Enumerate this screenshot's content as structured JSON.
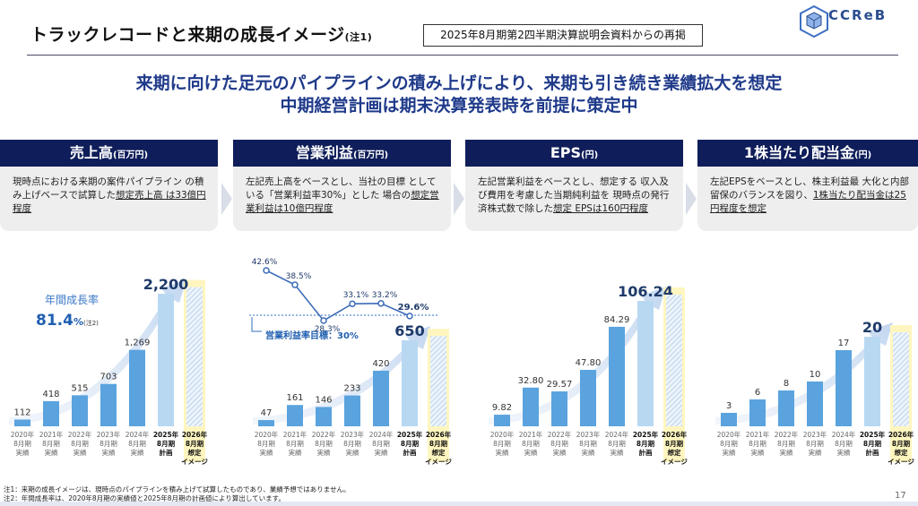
{
  "page": {
    "title": "トラックレコードと来期の成長イメージ",
    "title_note": "(注1)",
    "reprint": "2025年8月期第2四半期決算説明会資料からの再掲",
    "logo": "CCReB",
    "headline1": "来期に向けた足元のパイプラインの積み上げにより、来期も引き続き業績拡大を想定",
    "headline2": "中期経営計画は期末決算発表時を前提に策定中",
    "page_number": "17",
    "footnote1": "注1：来期の成長イメージは、現時点のパイプラインを積み上げて試算したものであり、業績予想ではありません。",
    "footnote2": "注2：年間成長率は、2020年8月期の実績値と2025年8月期の計画値により算出しています。"
  },
  "cards": [
    {
      "title": "売上高",
      "unit": "(百万円)",
      "text_plain": "現時点における来期の案件パイプライン の積み上げベースで試算した",
      "text_underline": "想定売上高 は33億円程度"
    },
    {
      "title": "営業利益",
      "unit": "(百万円)",
      "text_plain": "左記売上高をベースとし、当社の目標 としている「営業利益率30%」とした 場合の",
      "text_underline": "想定営業利益は10億円程度"
    },
    {
      "title": "EPS",
      "unit": "(円)",
      "text_plain": "左記営業利益をベースとし、想定する 収入及び費用を考慮した当期純利益を 現時点の発行済株式数で除した",
      "text_underline": "想定 EPSは160円程度"
    },
    {
      "title": "1株当たり配当金",
      "unit": "(円)",
      "text_plain": "左記EPSをベースとし、株主利益最 大化と内部留保のバランスを図り、",
      "text_underline": "1株当たり配当金は25円程度を想定"
    }
  ],
  "chart_data": [
    {
      "type": "bar",
      "title": "売上高",
      "unit": "百万円",
      "categories": [
        [
          "2020年",
          "8月期",
          "実績"
        ],
        [
          "2021年",
          "8月期",
          "実績"
        ],
        [
          "2022年",
          "8月期",
          "実績"
        ],
        [
          "2023年",
          "8月期",
          "実績"
        ],
        [
          "2024年",
          "8月期",
          "実績"
        ],
        [
          "2025年",
          "8月期",
          "計画"
        ],
        [
          "2026年",
          "8月期",
          "想定",
          "イメージ"
        ]
      ],
      "values": [
        112,
        418,
        515,
        703,
        1269,
        2200,
        null
      ],
      "labels": [
        "112",
        "418",
        "515",
        "703",
        "1,269",
        "2,200",
        ""
      ],
      "annotation": {
        "label": "年間成長率",
        "value": "81.4",
        "unit": "%",
        "note": "(注2)"
      }
    },
    {
      "type": "bar",
      "title": "営業利益",
      "unit": "百万円",
      "categories": [
        [
          "2020年",
          "8月期",
          "実績"
        ],
        [
          "2021年",
          "8月期",
          "実績"
        ],
        [
          "2022年",
          "8月期",
          "実績"
        ],
        [
          "2023年",
          "8月期",
          "実績"
        ],
        [
          "2024年",
          "8月期",
          "実績"
        ],
        [
          "2025年",
          "8月期",
          "計画"
        ],
        [
          "2026年",
          "8月期",
          "想定",
          "イメージ"
        ]
      ],
      "values": [
        47,
        161,
        146,
        233,
        420,
        650,
        null
      ],
      "labels": [
        "47",
        "161",
        "146",
        "233",
        "420",
        "650",
        ""
      ],
      "margin_series": {
        "name": "営業利益率",
        "values": [
          42.6,
          38.5,
          28.3,
          33.1,
          33.2,
          29.6
        ],
        "labels": [
          "42.6%",
          "38.5%",
          "28.3%",
          "33.1%",
          "33.2%",
          "29.6%"
        ]
      },
      "target_label": "営業利益率目標：30%",
      "target_value": 30
    },
    {
      "type": "bar",
      "title": "EPS",
      "unit": "円",
      "categories": [
        [
          "2020年",
          "8月期",
          "実績"
        ],
        [
          "2021年",
          "8月期",
          "実績"
        ],
        [
          "2022年",
          "8月期",
          "実績"
        ],
        [
          "2023年",
          "8月期",
          "実績"
        ],
        [
          "2024年",
          "8月期",
          "実績"
        ],
        [
          "2025年",
          "8月期",
          "計画"
        ],
        [
          "2026年",
          "8月期",
          "想定",
          "イメージ"
        ]
      ],
      "values": [
        9.82,
        32.8,
        29.57,
        47.8,
        84.29,
        106.24,
        null
      ],
      "labels": [
        "9.82",
        "32.80",
        "29.57",
        "47.80",
        "84.29",
        "106.24",
        ""
      ]
    },
    {
      "type": "bar",
      "title": "1株当たり配当金",
      "unit": "円",
      "categories": [
        [
          "2020年",
          "8月期",
          "実績"
        ],
        [
          "2021年",
          "8月期",
          "実績"
        ],
        [
          "2022年",
          "8月期",
          "実績"
        ],
        [
          "2023年",
          "8月期",
          "実績"
        ],
        [
          "2024年",
          "8月期",
          "実績"
        ],
        [
          "2025年",
          "8月期",
          "計画"
        ],
        [
          "2026年",
          "8月期",
          "想定",
          "イメージ"
        ]
      ],
      "values": [
        3,
        6,
        8,
        10,
        17,
        20,
        null
      ],
      "labels": [
        "3",
        "6",
        "8",
        "10",
        "17",
        "20",
        ""
      ]
    }
  ]
}
